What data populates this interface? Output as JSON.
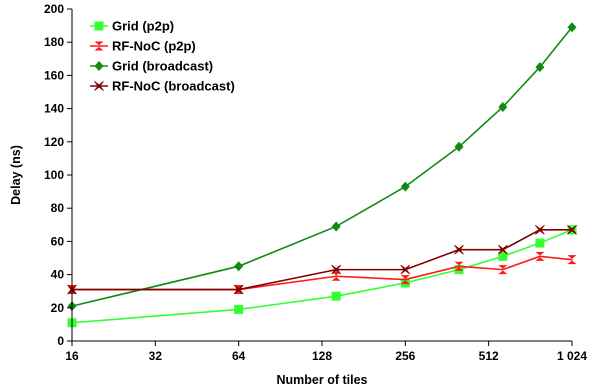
{
  "chart_data": {
    "type": "line",
    "xlabel": "Number of tiles",
    "ylabel": "Delay (ns)",
    "x_scale": "log2",
    "xlim": [
      16,
      1024
    ],
    "ylim": [
      0,
      200
    ],
    "x_ticks": [
      16,
      32,
      64,
      128,
      256,
      512,
      1024
    ],
    "x_tick_labels": [
      "16",
      "32",
      "64",
      "128",
      "256",
      "512",
      "1 024"
    ],
    "y_ticks": [
      0,
      20,
      40,
      60,
      80,
      100,
      120,
      140,
      160,
      180,
      200
    ],
    "grid": "off",
    "legend_position": "top-left",
    "series": [
      {
        "name": "Grid (p2p)",
        "color": "#33ff33",
        "marker": "square",
        "x": [
          16,
          64,
          144,
          256,
          400,
          576,
          784,
          1024
        ],
        "y": [
          11,
          19,
          27,
          35,
          43,
          51,
          59,
          67
        ]
      },
      {
        "name": "RF-NoC (p2p)",
        "color": "#ff1a1a",
        "marker": "hourglass",
        "x": [
          16,
          64,
          144,
          256,
          400,
          576,
          784,
          1024
        ],
        "y": [
          31,
          31,
          39,
          37,
          45,
          43,
          51,
          49
        ]
      },
      {
        "name": "Grid (broadcast)",
        "color": "#128a12",
        "marker": "diamond",
        "x": [
          16,
          64,
          144,
          256,
          400,
          576,
          784,
          1024
        ],
        "y": [
          21,
          45,
          69,
          93,
          117,
          141,
          165,
          189
        ]
      },
      {
        "name": "RF-NoC (broadcast)",
        "color": "#800000",
        "marker": "bowtie",
        "x": [
          16,
          64,
          144,
          256,
          400,
          576,
          784,
          1024
        ],
        "y": [
          31,
          31,
          43,
          43,
          55,
          55,
          67,
          67
        ]
      }
    ]
  }
}
